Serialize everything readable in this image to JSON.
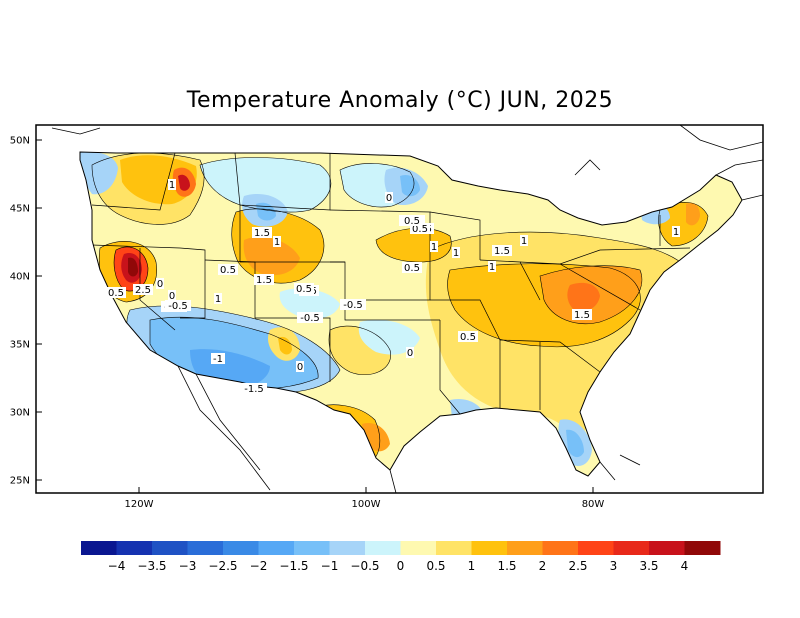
{
  "title": "Temperature Anomaly (°C) JUN, 2025",
  "axes": {
    "lat_labels": [
      "50N",
      "45N",
      "40N",
      "35N",
      "30N",
      "25N"
    ],
    "lon_labels": [
      "120W",
      "100W",
      "80W"
    ]
  },
  "contour_labels": [
    {
      "text": "1"
    },
    {
      "text": "0"
    },
    {
      "text": "-0.5"
    },
    {
      "text": "0.5"
    },
    {
      "text": "1"
    },
    {
      "text": "1.5"
    },
    {
      "text": "0.5"
    },
    {
      "text": "1.5"
    },
    {
      "text": "0.5"
    },
    {
      "text": "1"
    },
    {
      "text": "0.5"
    },
    {
      "text": "-0.5"
    },
    {
      "text": "-0.5"
    },
    {
      "text": "0"
    },
    {
      "text": "-0.5"
    },
    {
      "text": "0.5"
    },
    {
      "text": "1"
    },
    {
      "text": "1"
    },
    {
      "text": "1.5"
    },
    {
      "text": "1"
    },
    {
      "text": "1"
    },
    {
      "text": "1.5"
    },
    {
      "text": "0.5"
    },
    {
      "text": "0.5"
    },
    {
      "text": "0"
    },
    {
      "text": "0.5"
    },
    {
      "text": "0.5"
    },
    {
      "text": "-1"
    },
    {
      "text": "-1.5"
    },
    {
      "text": "0"
    },
    {
      "text": "1"
    },
    {
      "text": "2.5"
    },
    {
      "text": "0"
    },
    {
      "text": "-0.5"
    }
  ],
  "legend": {
    "colors": [
      "#0a1690",
      "#1532b0",
      "#1f52c4",
      "#2a6dd8",
      "#3a8ae6",
      "#56a8f5",
      "#77c0f8",
      "#a6d4f8",
      "#ccf4fb",
      "#fef9b0",
      "#ffe366",
      "#ffc20e",
      "#ff9f1a",
      "#ff7418",
      "#ff4417",
      "#e8291a",
      "#c8121b",
      "#900808"
    ],
    "labels": [
      "−4",
      "−3.5",
      "−3",
      "−2.5",
      "−2",
      "−1.5",
      "−1",
      "−0.5",
      "0",
      "0.5",
      "1",
      "1.5",
      "2",
      "2.5",
      "3",
      "3.5",
      "4"
    ]
  }
}
